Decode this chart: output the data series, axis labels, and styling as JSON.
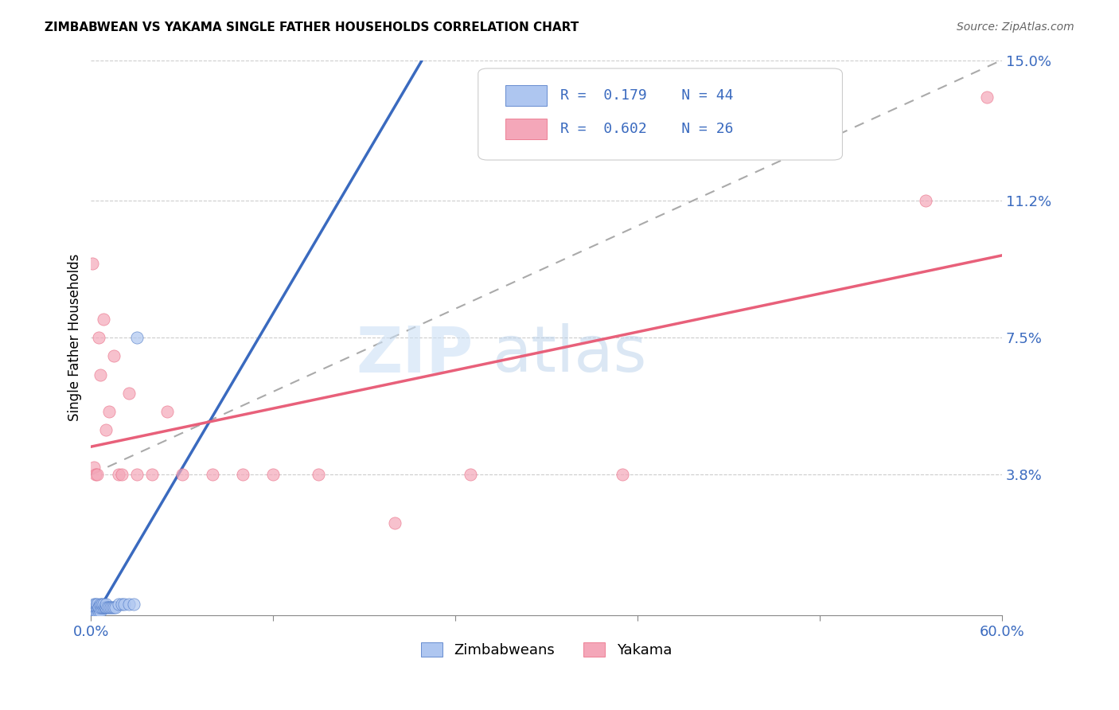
{
  "title": "ZIMBABWEAN VS YAKAMA SINGLE FATHER HOUSEHOLDS CORRELATION CHART",
  "source": "Source: ZipAtlas.com",
  "ylabel": "Single Father Households",
  "xlim": [
    0.0,
    0.6
  ],
  "ylim": [
    0.0,
    0.15
  ],
  "legend_R1": "0.179",
  "legend_N1": "44",
  "legend_R2": "0.602",
  "legend_N2": "26",
  "color_zimbabwean": "#aec6f0",
  "color_yakama": "#f4a7b9",
  "line_color_zimbabwean": "#3a6abf",
  "line_color_yakama": "#e8607a",
  "grid_color": "#cccccc",
  "ref_line_color": "#aaaaaa",
  "zim_x": [
    0.001,
    0.001,
    0.001,
    0.001,
    0.002,
    0.002,
    0.002,
    0.002,
    0.002,
    0.002,
    0.003,
    0.003,
    0.003,
    0.003,
    0.003,
    0.004,
    0.004,
    0.004,
    0.004,
    0.005,
    0.005,
    0.005,
    0.006,
    0.006,
    0.006,
    0.007,
    0.007,
    0.008,
    0.008,
    0.009,
    0.01,
    0.01,
    0.011,
    0.012,
    0.013,
    0.014,
    0.015,
    0.016,
    0.018,
    0.02,
    0.022,
    0.025,
    0.028,
    0.03
  ],
  "zim_y": [
    0.0,
    0.001,
    0.001,
    0.002,
    0.0,
    0.001,
    0.001,
    0.002,
    0.002,
    0.003,
    0.001,
    0.001,
    0.002,
    0.002,
    0.003,
    0.001,
    0.002,
    0.002,
    0.003,
    0.001,
    0.002,
    0.002,
    0.001,
    0.002,
    0.003,
    0.002,
    0.003,
    0.002,
    0.003,
    0.002,
    0.002,
    0.003,
    0.002,
    0.002,
    0.002,
    0.002,
    0.002,
    0.002,
    0.003,
    0.003,
    0.003,
    0.003,
    0.003,
    0.075
  ],
  "yak_x": [
    0.001,
    0.002,
    0.003,
    0.004,
    0.005,
    0.006,
    0.008,
    0.01,
    0.012,
    0.015,
    0.018,
    0.02,
    0.025,
    0.03,
    0.04,
    0.05,
    0.06,
    0.08,
    0.1,
    0.12,
    0.15,
    0.2,
    0.25,
    0.35,
    0.55,
    0.59
  ],
  "yak_y": [
    0.095,
    0.04,
    0.038,
    0.038,
    0.075,
    0.065,
    0.08,
    0.05,
    0.055,
    0.07,
    0.038,
    0.038,
    0.06,
    0.038,
    0.038,
    0.055,
    0.038,
    0.038,
    0.038,
    0.038,
    0.038,
    0.025,
    0.038,
    0.038,
    0.112,
    0.14
  ],
  "yticks_right": [
    0.038,
    0.075,
    0.112,
    0.15
  ],
  "ytick_labels_right": [
    "3.8%",
    "7.5%",
    "11.2%",
    "15.0%"
  ],
  "xticks": [
    0.0,
    0.12,
    0.24,
    0.36,
    0.48,
    0.6
  ],
  "xticklabels": [
    "0.0%",
    "",
    "",
    "",
    "",
    "60.0%"
  ]
}
